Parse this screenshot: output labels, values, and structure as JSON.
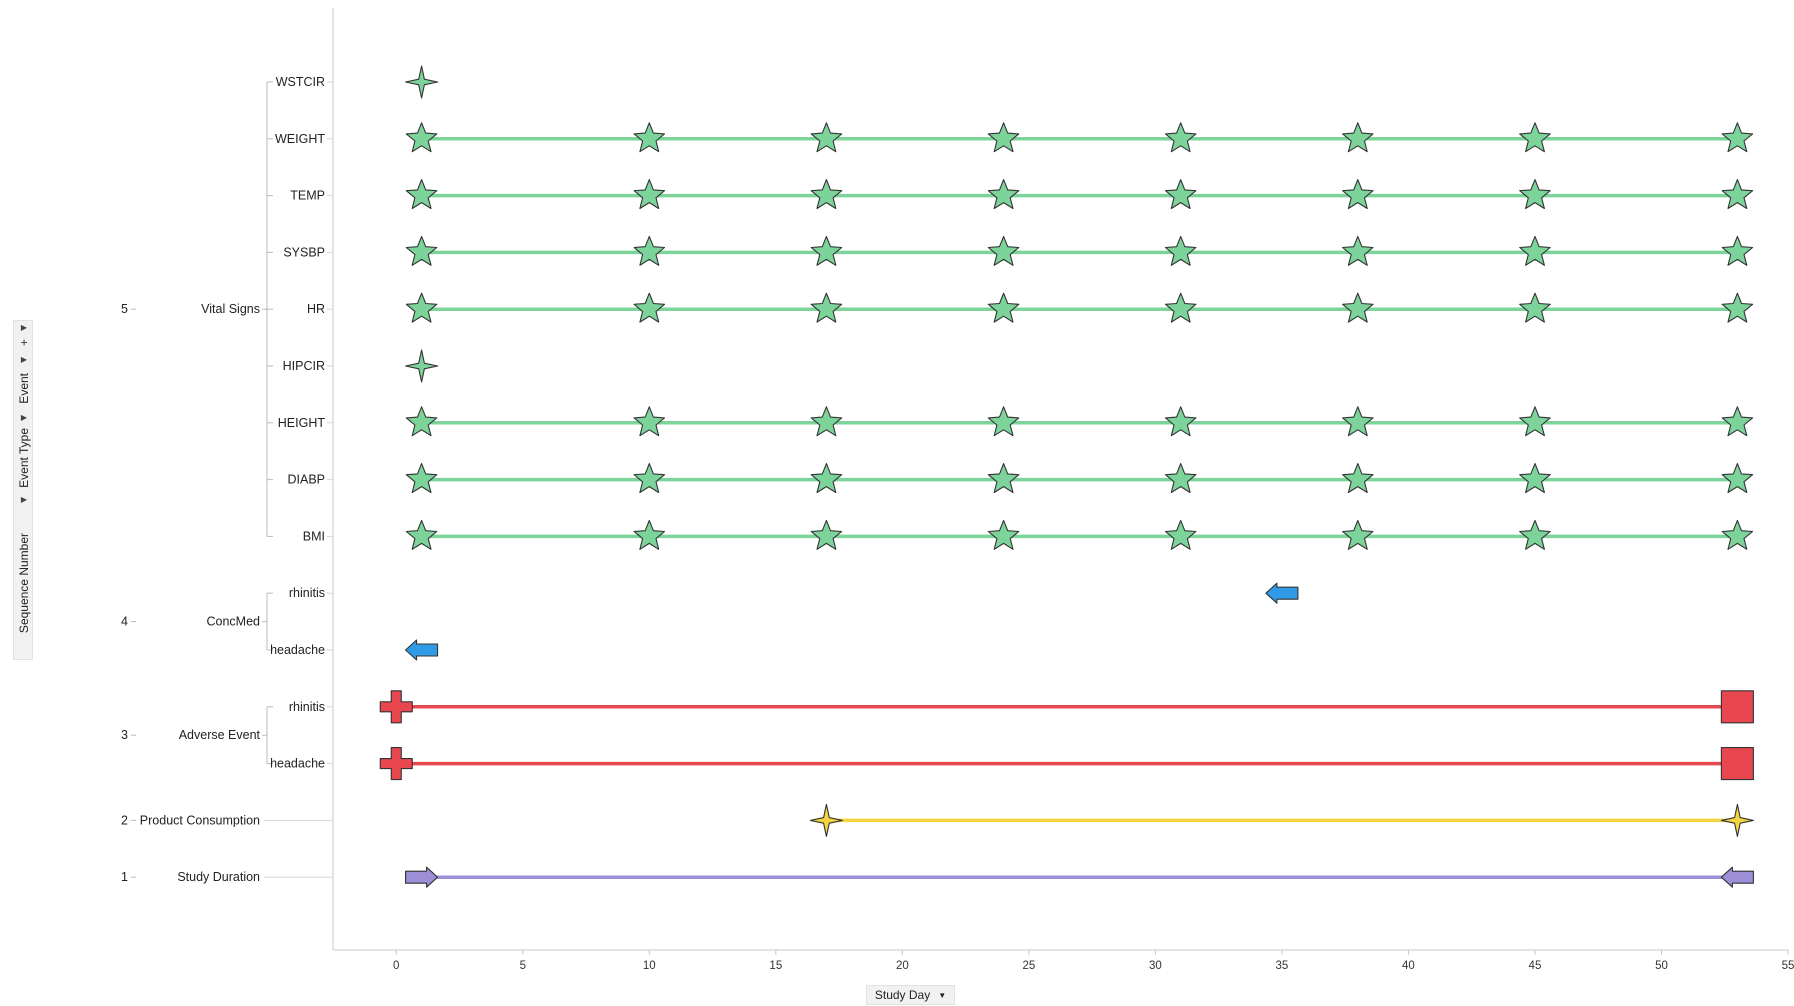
{
  "axis_selectors": {
    "y": [
      {
        "label": "+"
      },
      {
        "label": "Event"
      },
      {
        "label": "Event Type"
      },
      {
        "label": "Sequence Number"
      }
    ],
    "x": {
      "label": "Study Day",
      "dropdown_icon": "triangle-down-icon"
    }
  },
  "chart_data": {
    "type": "timeline",
    "xlabel": "Study Day",
    "xlim": [
      -2.5,
      55
    ],
    "xticks": [
      0,
      5,
      10,
      15,
      20,
      25,
      30,
      35,
      40,
      45,
      50,
      55
    ],
    "groups": [
      {
        "seq": "5",
        "type": "Vital Signs",
        "events": [
          "WSTCIR",
          "WEIGHT",
          "TEMP",
          "SYSBP",
          "HR",
          "HIPCIR",
          "HEIGHT",
          "DIABP",
          "BMI"
        ]
      },
      {
        "seq": "4",
        "type": "ConcMed",
        "events": [
          "rhinitis",
          "headache"
        ]
      },
      {
        "seq": "3",
        "type": "Adverse Event",
        "events": [
          "rhinitis",
          "headache"
        ]
      },
      {
        "seq": "2",
        "type": "Product Consumption",
        "events": [
          ""
        ]
      },
      {
        "seq": "1",
        "type": "Study Duration",
        "events": [
          ""
        ]
      }
    ],
    "series": [
      {
        "group": "Vital Signs",
        "event": "WSTCIR",
        "color": "#7dd49a",
        "line": false,
        "points": [
          {
            "x": 1,
            "marker": "star4"
          }
        ]
      },
      {
        "group": "Vital Signs",
        "event": "WEIGHT",
        "color": "#7dd49a",
        "line": true,
        "points": [
          {
            "x": 1,
            "marker": "star5"
          },
          {
            "x": 10,
            "marker": "star5"
          },
          {
            "x": 17,
            "marker": "star5"
          },
          {
            "x": 24,
            "marker": "star5"
          },
          {
            "x": 31,
            "marker": "star5"
          },
          {
            "x": 38,
            "marker": "star5"
          },
          {
            "x": 45,
            "marker": "star5"
          },
          {
            "x": 53,
            "marker": "star5"
          }
        ]
      },
      {
        "group": "Vital Signs",
        "event": "TEMP",
        "color": "#7dd49a",
        "line": true,
        "points": [
          {
            "x": 1,
            "marker": "star5"
          },
          {
            "x": 10,
            "marker": "star5"
          },
          {
            "x": 17,
            "marker": "star5"
          },
          {
            "x": 24,
            "marker": "star5"
          },
          {
            "x": 31,
            "marker": "star5"
          },
          {
            "x": 38,
            "marker": "star5"
          },
          {
            "x": 45,
            "marker": "star5"
          },
          {
            "x": 53,
            "marker": "star5"
          }
        ]
      },
      {
        "group": "Vital Signs",
        "event": "SYSBP",
        "color": "#7dd49a",
        "line": true,
        "points": [
          {
            "x": 1,
            "marker": "star5"
          },
          {
            "x": 10,
            "marker": "star5"
          },
          {
            "x": 17,
            "marker": "star5"
          },
          {
            "x": 24,
            "marker": "star5"
          },
          {
            "x": 31,
            "marker": "star5"
          },
          {
            "x": 38,
            "marker": "star5"
          },
          {
            "x": 45,
            "marker": "star5"
          },
          {
            "x": 53,
            "marker": "star5"
          }
        ]
      },
      {
        "group": "Vital Signs",
        "event": "HR",
        "color": "#7dd49a",
        "line": true,
        "points": [
          {
            "x": 1,
            "marker": "star5"
          },
          {
            "x": 10,
            "marker": "star5"
          },
          {
            "x": 17,
            "marker": "star5"
          },
          {
            "x": 24,
            "marker": "star5"
          },
          {
            "x": 31,
            "marker": "star5"
          },
          {
            "x": 38,
            "marker": "star5"
          },
          {
            "x": 45,
            "marker": "star5"
          },
          {
            "x": 53,
            "marker": "star5"
          }
        ]
      },
      {
        "group": "Vital Signs",
        "event": "HIPCIR",
        "color": "#7dd49a",
        "line": false,
        "points": [
          {
            "x": 1,
            "marker": "star4"
          }
        ]
      },
      {
        "group": "Vital Signs",
        "event": "HEIGHT",
        "color": "#7dd49a",
        "line": true,
        "points": [
          {
            "x": 1,
            "marker": "star5"
          },
          {
            "x": 10,
            "marker": "star5"
          },
          {
            "x": 17,
            "marker": "star5"
          },
          {
            "x": 24,
            "marker": "star5"
          },
          {
            "x": 31,
            "marker": "star5"
          },
          {
            "x": 38,
            "marker": "star5"
          },
          {
            "x": 45,
            "marker": "star5"
          },
          {
            "x": 53,
            "marker": "star5"
          }
        ]
      },
      {
        "group": "Vital Signs",
        "event": "DIABP",
        "color": "#7dd49a",
        "line": true,
        "points": [
          {
            "x": 1,
            "marker": "star5"
          },
          {
            "x": 10,
            "marker": "star5"
          },
          {
            "x": 17,
            "marker": "star5"
          },
          {
            "x": 24,
            "marker": "star5"
          },
          {
            "x": 31,
            "marker": "star5"
          },
          {
            "x": 38,
            "marker": "star5"
          },
          {
            "x": 45,
            "marker": "star5"
          },
          {
            "x": 53,
            "marker": "star5"
          }
        ]
      },
      {
        "group": "Vital Signs",
        "event": "BMI",
        "color": "#7dd49a",
        "line": true,
        "points": [
          {
            "x": 1,
            "marker": "star5"
          },
          {
            "x": 10,
            "marker": "star5"
          },
          {
            "x": 17,
            "marker": "star5"
          },
          {
            "x": 24,
            "marker": "star5"
          },
          {
            "x": 31,
            "marker": "star5"
          },
          {
            "x": 38,
            "marker": "star5"
          },
          {
            "x": 45,
            "marker": "star5"
          },
          {
            "x": 53,
            "marker": "star5"
          }
        ]
      },
      {
        "group": "ConcMed",
        "event": "rhinitis",
        "color": "#2f9be6",
        "line": false,
        "points": [
          {
            "x": 35,
            "marker": "arrow-left"
          }
        ]
      },
      {
        "group": "ConcMed",
        "event": "headache",
        "color": "#2f9be6",
        "line": false,
        "points": [
          {
            "x": 1,
            "marker": "arrow-left"
          }
        ]
      },
      {
        "group": "Adverse Event",
        "event": "rhinitis",
        "color": "#e8474f",
        "line": true,
        "points": [
          {
            "x": 0,
            "marker": "cross"
          },
          {
            "x": 53,
            "marker": "square"
          }
        ]
      },
      {
        "group": "Adverse Event",
        "event": "headache",
        "color": "#e8474f",
        "line": true,
        "points": [
          {
            "x": 0,
            "marker": "cross"
          },
          {
            "x": 53,
            "marker": "square"
          }
        ]
      },
      {
        "group": "Product Consumption",
        "event": "",
        "color": "#f5d442",
        "line": true,
        "points": [
          {
            "x": 17,
            "marker": "star4"
          },
          {
            "x": 53,
            "marker": "star4"
          }
        ]
      },
      {
        "group": "Study Duration",
        "event": "",
        "color": "#9c8fd8",
        "line": true,
        "points": [
          {
            "x": 1,
            "marker": "arrow-right"
          },
          {
            "x": 53,
            "marker": "arrow-left"
          }
        ]
      }
    ]
  }
}
